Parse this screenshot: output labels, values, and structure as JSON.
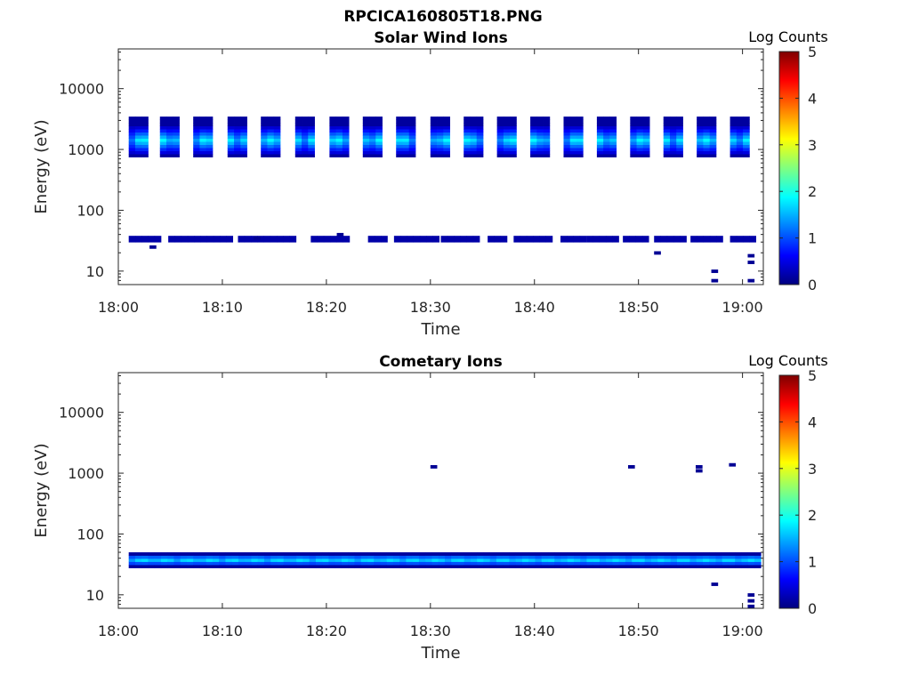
{
  "figure_title": "RPCICA160805T18.PNG",
  "chart_data": [
    {
      "type": "heatmap",
      "title": "Solar Wind Ions",
      "xlabel": "Time",
      "ylabel": "Energy (eV)",
      "x_tick_labels": [
        "18:00",
        "18:10",
        "18:20",
        "18:30",
        "18:40",
        "18:50",
        "19:00"
      ],
      "x_range_minutes": [
        0,
        62
      ],
      "y_scale": "log",
      "y_range": [
        6,
        45000
      ],
      "y_tick_labels": [
        "10",
        "100",
        "1000",
        "10000"
      ],
      "colorbar": {
        "label": "Log Counts",
        "range": [
          0,
          5
        ],
        "tick_labels": [
          "0",
          "1",
          "2",
          "3",
          "4",
          "5"
        ]
      },
      "beam": {
        "start_times_min": [
          1.0,
          4.0,
          7.2,
          10.5,
          13.7,
          17.0,
          20.3,
          23.5,
          26.7,
          30.0,
          33.2,
          36.4,
          39.6,
          42.8,
          46.0,
          49.2,
          52.4,
          55.6,
          58.8
        ],
        "width_min": 1.6,
        "energy_range_eV": [
          720,
          3600
        ],
        "peak_energy_eV": [
          900,
          2000
        ],
        "peak_log_counts": 1.9
      },
      "low_band": {
        "energy_range_eV": [
          30,
          38
        ],
        "log_counts": 0.2,
        "segments_min": [
          [
            1.0,
            3.5
          ],
          [
            4.8,
            10.5
          ],
          [
            11.5,
            17.0
          ],
          [
            18.5,
            22.0
          ],
          [
            24.0,
            25.5
          ],
          [
            26.5,
            30.5
          ],
          [
            31.0,
            34.5
          ],
          [
            35.5,
            37.0
          ],
          [
            38.0,
            41.5
          ],
          [
            42.5,
            44.5
          ],
          [
            45.0,
            48.0
          ],
          [
            48.5,
            50.5
          ],
          [
            51.5,
            54.0
          ],
          [
            55.0,
            57.5
          ],
          [
            58.8,
            60.8
          ]
        ]
      },
      "sparse_bins_min_eV": [
        [
          3.0,
          25
        ],
        [
          13.0,
          35
        ],
        [
          21.0,
          40
        ],
        [
          51.5,
          20
        ],
        [
          57.0,
          10
        ],
        [
          57.0,
          7
        ],
        [
          60.5,
          14
        ],
        [
          60.5,
          18
        ],
        [
          60.5,
          7
        ]
      ]
    },
    {
      "type": "heatmap",
      "title": "Cometary Ions",
      "xlabel": "Time",
      "ylabel": "Energy (eV)",
      "x_tick_labels": [
        "18:00",
        "18:10",
        "18:20",
        "18:30",
        "18:40",
        "18:50",
        "19:00"
      ],
      "x_range_minutes": [
        0,
        62
      ],
      "y_scale": "log",
      "y_range": [
        6,
        45000
      ],
      "y_tick_labels": [
        "10",
        "100",
        "1000",
        "10000"
      ],
      "colorbar": {
        "label": "Log Counts",
        "range": [
          0,
          5
        ],
        "tick_labels": [
          "0",
          "1",
          "2",
          "3",
          "4",
          "5"
        ]
      },
      "band": {
        "energy_range_eV": [
          25,
          55
        ],
        "core_energy_eV": [
          30,
          42
        ],
        "time_range_min": [
          1.0,
          61.5
        ],
        "peak_log_counts": 1.8
      },
      "sparse_bins_min_eV": [
        [
          30.0,
          1280
        ],
        [
          49.0,
          1280
        ],
        [
          55.5,
          1280
        ],
        [
          55.5,
          1100
        ],
        [
          58.7,
          1380
        ],
        [
          57.0,
          15
        ],
        [
          60.5,
          10
        ],
        [
          60.5,
          8
        ],
        [
          60.5,
          6.5
        ]
      ]
    }
  ]
}
